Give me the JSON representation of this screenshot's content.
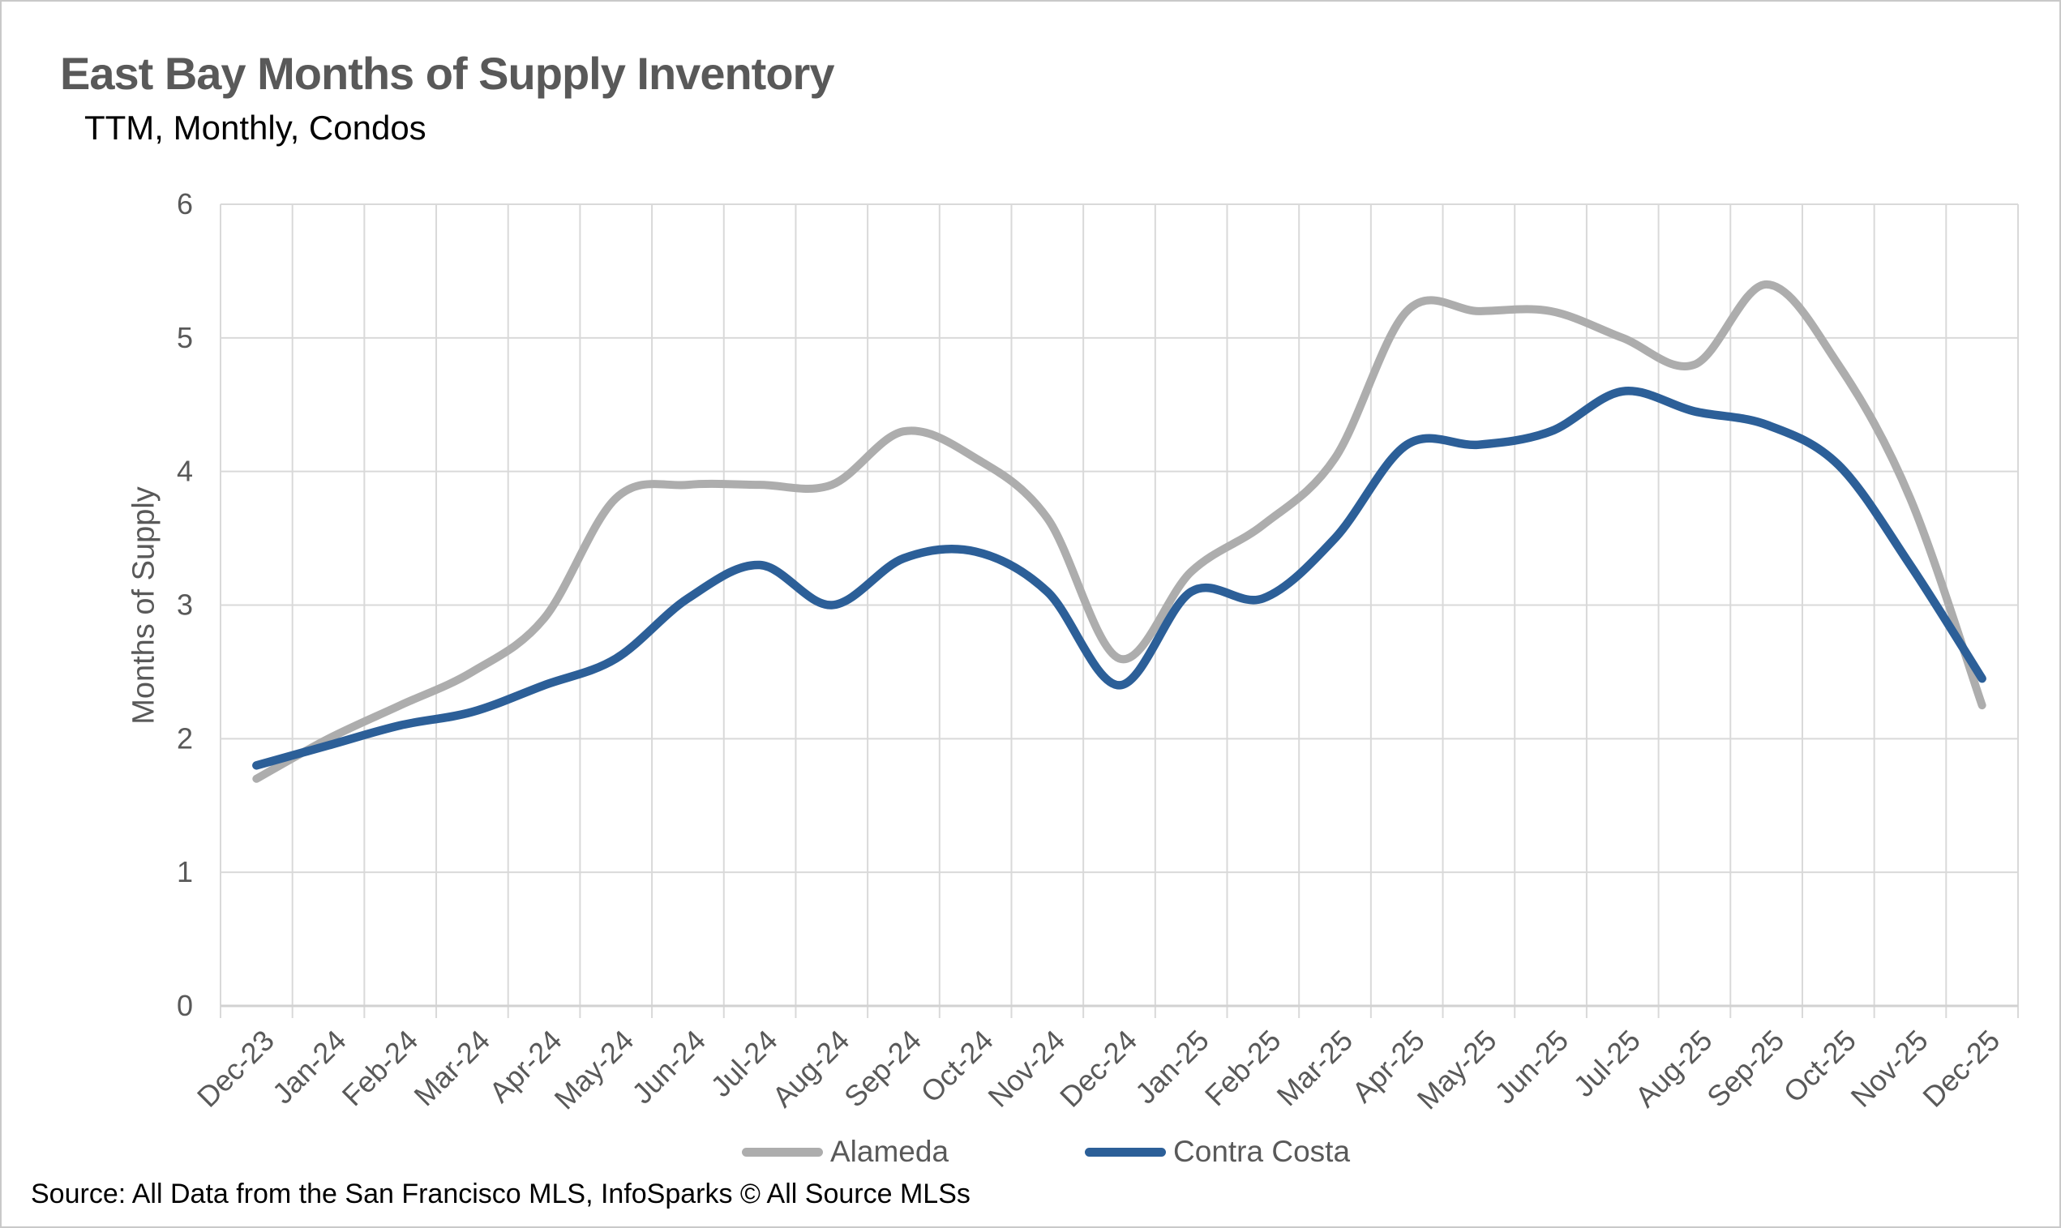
{
  "chart_data": {
    "type": "line",
    "title": "East Bay Months of Supply Inventory",
    "subtitle": "TTM, Monthly, Condos",
    "ylabel": "Months of Supply",
    "xlabel": "",
    "ylim": [
      0,
      6
    ],
    "yticks": [
      0,
      1,
      2,
      3,
      4,
      5,
      6
    ],
    "grid": true,
    "smooth": true,
    "legend_position": "bottom",
    "source": "Source: All Data from the San Francisco MLS, InfoSparks © All Source MLSs",
    "categories": [
      "Dec-23",
      "Jan-24",
      "Feb-24",
      "Mar-24",
      "Apr-24",
      "May-24",
      "Jun-24",
      "Jul-24",
      "Aug-24",
      "Sep-24",
      "Oct-24",
      "Nov-24",
      "Dec-24",
      "Jan-25",
      "Feb-25",
      "Mar-25",
      "Apr-25",
      "May-25",
      "Jun-25",
      "Jul-25",
      "Aug-25",
      "Sep-25",
      "Oct-25",
      "Nov-25",
      "Dec-25"
    ],
    "series": [
      {
        "name": "Alameda",
        "color": "#adadad",
        "values": [
          1.7,
          2.0,
          2.25,
          2.5,
          2.9,
          3.8,
          3.9,
          3.9,
          3.9,
          4.3,
          4.1,
          3.65,
          2.6,
          3.25,
          3.6,
          4.1,
          5.2,
          5.2,
          5.2,
          5.0,
          4.8,
          5.4,
          4.8,
          3.8,
          2.25
        ]
      },
      {
        "name": "Contra Costa",
        "color": "#2c5f98",
        "values": [
          1.8,
          1.95,
          2.1,
          2.2,
          2.4,
          2.6,
          3.05,
          3.3,
          3.0,
          3.35,
          3.4,
          3.1,
          2.4,
          3.1,
          3.05,
          3.5,
          4.2,
          4.2,
          4.3,
          4.6,
          4.45,
          4.35,
          4.05,
          3.3,
          2.45
        ]
      }
    ]
  },
  "colors": {
    "gridline": "#d9d9d9",
    "axis_line": "#d2d2d2",
    "axis_text": "#595959",
    "title_text": "#595959"
  }
}
